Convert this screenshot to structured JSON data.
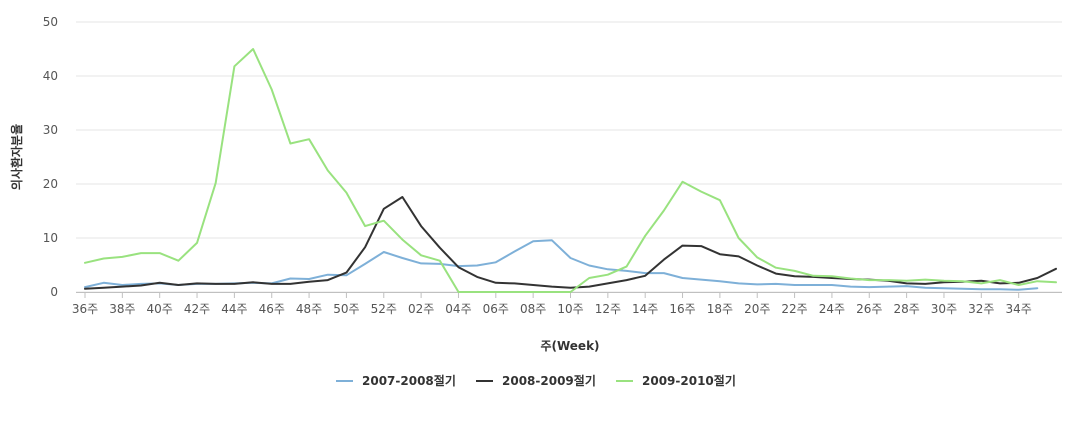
{
  "chart_data": {
    "type": "line",
    "xlabel": "주(Week)",
    "ylabel": "의사환자분율",
    "ylim": [
      0,
      50
    ],
    "yticks": [
      0,
      10,
      20,
      30,
      40,
      50
    ],
    "grid": "horizontal",
    "legend_position": "bottom-center",
    "x_tick_labels": [
      "36주",
      "38주",
      "40주",
      "42주",
      "44주",
      "46주",
      "48주",
      "50주",
      "52주",
      "02주",
      "04주",
      "06주",
      "08주",
      "10주",
      "12주",
      "14주",
      "16주",
      "18주",
      "20주",
      "22주",
      "24주",
      "26주",
      "28주",
      "30주",
      "32주",
      "34주"
    ],
    "weeks": [
      "36",
      "37",
      "38",
      "39",
      "40",
      "41",
      "42",
      "43",
      "44",
      "45",
      "46",
      "47",
      "48",
      "49",
      "50",
      "51",
      "52",
      "53",
      "01",
      "02",
      "03",
      "04",
      "05",
      "06",
      "07",
      "08",
      "09",
      "10",
      "11",
      "12",
      "13",
      "14",
      "15",
      "16",
      "17",
      "18",
      "19",
      "20",
      "21",
      "22",
      "23",
      "24",
      "25",
      "26",
      "27",
      "28",
      "29",
      "30",
      "31",
      "32",
      "33",
      "34",
      "35"
    ],
    "series": [
      {
        "name": "2007-2008절기",
        "color": "#7eb0d8",
        "values": [
          0.9,
          1.7,
          1.3,
          1.5,
          1.6,
          1.3,
          1.5,
          1.5,
          1.6,
          1.7,
          1.6,
          2.5,
          2.4,
          3.2,
          3.1,
          5.2,
          7.4,
          6.3,
          5.3,
          5.2,
          4.8,
          4.9,
          5.5,
          7.5,
          9.4,
          9.6,
          6.3,
          4.9,
          4.2,
          3.9,
          3.5,
          3.5,
          2.6,
          2.3,
          2.0,
          1.6,
          1.4,
          1.5,
          1.3,
          1.3,
          1.3,
          1.0,
          0.9,
          1.0,
          1.1,
          0.8,
          0.7,
          0.6,
          0.5,
          0.5,
          0.4,
          0.7,
          null
        ]
      },
      {
        "name": "2008-2009절기",
        "color": "#333333",
        "values": [
          0.6,
          0.8,
          1.0,
          1.2,
          1.7,
          1.3,
          1.6,
          1.5,
          1.5,
          1.8,
          1.5,
          1.5,
          1.9,
          2.2,
          3.6,
          8.3,
          15.4,
          17.6,
          12.2,
          8.2,
          4.6,
          2.8,
          1.7,
          1.6,
          1.3,
          1.0,
          0.8,
          1.0,
          1.6,
          2.2,
          3.0,
          6.0,
          8.6,
          8.5,
          7.0,
          6.6,
          4.9,
          3.4,
          2.9,
          2.8,
          2.6,
          2.4,
          2.3,
          2.1,
          1.6,
          1.5,
          1.8,
          1.9,
          2.1,
          1.6,
          1.7,
          2.6,
          4.3
        ]
      },
      {
        "name": "2009-2010절기",
        "color": "#99e27f",
        "values": [
          5.4,
          6.2,
          6.5,
          7.2,
          7.2,
          5.8,
          9.1,
          20.2,
          41.8,
          45.0,
          37.5,
          27.5,
          28.3,
          22.5,
          18.4,
          12.2,
          13.2,
          9.7,
          6.8,
          5.8,
          0.0,
          0.0,
          0.0,
          0.0,
          0.0,
          0.0,
          0.0,
          2.6,
          3.2,
          4.7,
          10.4,
          15.1,
          20.4,
          18.6,
          17.0,
          10.0,
          6.4,
          4.5,
          3.9,
          3.0,
          2.9,
          2.5,
          2.2,
          2.2,
          2.1,
          2.3,
          2.1,
          2.0,
          1.6,
          2.2,
          1.3,
          2.0,
          1.8
        ]
      }
    ]
  }
}
